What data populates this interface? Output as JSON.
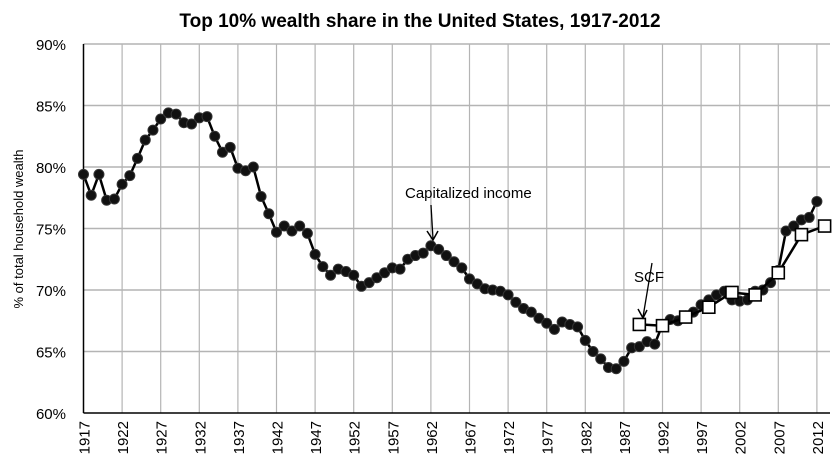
{
  "chart_data": {
    "type": "line",
    "title": "Top 10% wealth share in the United States, 1917-2012",
    "xlabel": "",
    "ylabel": "% of total household wealth",
    "xlim": [
      1917,
      2013
    ],
    "ylim": [
      60,
      90
    ],
    "grid": true,
    "y_ticks": [
      "60%",
      "65%",
      "70%",
      "75%",
      "80%",
      "85%",
      "90%"
    ],
    "y_tick_values": [
      60,
      65,
      70,
      75,
      80,
      85,
      90
    ],
    "x_ticks": [
      "1917",
      "1922",
      "1927",
      "1932",
      "1937",
      "1942",
      "1947",
      "1952",
      "1957",
      "1962",
      "1967",
      "1972",
      "1977",
      "1982",
      "1987",
      "1992",
      "1997",
      "2002",
      "2007",
      "2012"
    ],
    "series": [
      {
        "name": "Capitalized income",
        "marker": "circle",
        "x": [
          1917,
          1918,
          1919,
          1920,
          1921,
          1922,
          1923,
          1924,
          1925,
          1926,
          1927,
          1928,
          1929,
          1930,
          1931,
          1932,
          1933,
          1934,
          1935,
          1936,
          1937,
          1938,
          1939,
          1940,
          1941,
          1942,
          1943,
          1944,
          1945,
          1946,
          1947,
          1948,
          1949,
          1950,
          1951,
          1952,
          1953,
          1954,
          1955,
          1956,
          1957,
          1958,
          1959,
          1960,
          1961,
          1962,
          1963,
          1964,
          1965,
          1966,
          1967,
          1968,
          1969,
          1970,
          1971,
          1972,
          1973,
          1974,
          1975,
          1976,
          1977,
          1978,
          1979,
          1980,
          1981,
          1982,
          1983,
          1984,
          1985,
          1986,
          1987,
          1988,
          1989,
          1990,
          1991,
          1992,
          1993,
          1994,
          1995,
          1996,
          1997,
          1998,
          1999,
          2000,
          2001,
          2002,
          2003,
          2004,
          2005,
          2006,
          2007,
          2008,
          2009,
          2010,
          2011,
          2012
        ],
        "values": [
          79.4,
          77.7,
          79.4,
          77.3,
          77.4,
          78.6,
          79.3,
          80.7,
          82.2,
          83.0,
          83.9,
          84.4,
          84.3,
          83.6,
          83.5,
          84.0,
          84.1,
          82.5,
          81.2,
          81.6,
          79.9,
          79.7,
          80.0,
          77.6,
          76.2,
          74.7,
          75.2,
          74.8,
          75.2,
          74.6,
          72.9,
          71.9,
          71.2,
          71.7,
          71.5,
          71.2,
          70.3,
          70.6,
          71.0,
          71.4,
          71.8,
          71.7,
          72.5,
          72.8,
          73.0,
          73.6,
          73.3,
          72.8,
          72.3,
          71.8,
          70.9,
          70.5,
          70.1,
          70.0,
          69.9,
          69.6,
          69.0,
          68.5,
          68.2,
          67.7,
          67.3,
          66.8,
          67.4,
          67.2,
          67.0,
          65.9,
          65.0,
          64.4,
          63.7,
          63.6,
          64.2,
          65.3,
          65.4,
          65.8,
          65.6,
          67.2,
          67.6,
          67.5,
          67.9,
          68.2,
          68.8,
          69.2,
          69.6,
          69.9,
          69.2,
          69.1,
          69.2,
          69.9,
          70.0,
          70.6,
          71.6,
          74.8,
          75.2,
          75.7,
          75.9,
          77.2
        ]
      },
      {
        "name": "SCF",
        "marker": "square",
        "x": [
          1989,
          1992,
          1995,
          1998,
          2001,
          2004,
          2007,
          2010,
          2013
        ],
        "values": [
          67.2,
          67.1,
          67.8,
          68.6,
          69.8,
          69.6,
          71.4,
          74.5,
          75.2
        ]
      }
    ],
    "annotations": [
      {
        "text": "Capitalized income",
        "points_to": [
          1962,
          73.6
        ]
      },
      {
        "text": "SCF",
        "points_to": [
          1989,
          67.2
        ]
      }
    ]
  }
}
